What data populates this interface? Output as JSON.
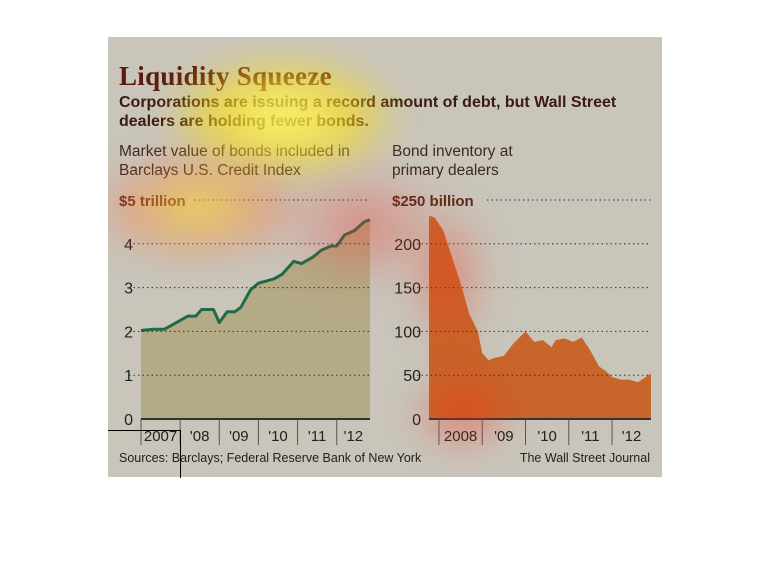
{
  "title": "Liquidity Squeeze",
  "subtitle": "Corporations are issuing a record amount of debt, but Wall Street dealers are holding fewer bonds.",
  "source": "Sources: Barclays; Federal Reserve Bank of New York",
  "credit": "The Wall Street Journal",
  "colors": {
    "line": "#1f6b45",
    "left_fill": "#b5aa86",
    "right_fill": "#c8652a",
    "background": "#c9c5bb"
  },
  "chart_data": [
    {
      "type": "area",
      "title": "Market value of bonds included in Barclays U.S. Credit Index",
      "ylabel": "$5 trillion",
      "ylim": [
        0,
        5
      ],
      "yticks": [
        "0",
        "1",
        "2",
        "3",
        "4",
        "$5 trillion"
      ],
      "xlim": [
        2007.0,
        2012.85
      ],
      "xticks": [
        "2007",
        "'08",
        "'09",
        "'10",
        "'11",
        "'12"
      ],
      "x": [
        2007.0,
        2007.3,
        2007.6,
        2007.9,
        2008.2,
        2008.4,
        2008.55,
        2008.85,
        2009.0,
        2009.2,
        2009.4,
        2009.55,
        2009.8,
        2010.0,
        2010.2,
        2010.4,
        2010.6,
        2010.9,
        2011.1,
        2011.4,
        2011.6,
        2011.85,
        2012.0,
        2012.2,
        2012.45,
        2012.7,
        2012.85
      ],
      "values": [
        2.02,
        2.05,
        2.05,
        2.2,
        2.35,
        2.35,
        2.5,
        2.5,
        2.2,
        2.45,
        2.45,
        2.55,
        2.95,
        3.1,
        3.15,
        3.2,
        3.3,
        3.6,
        3.55,
        3.7,
        3.85,
        3.95,
        3.95,
        4.2,
        4.3,
        4.5,
        4.55
      ]
    },
    {
      "type": "area",
      "title": "Bond inventory at primary dealers",
      "ylabel": "$250 billion",
      "ylim": [
        0,
        250
      ],
      "yticks": [
        "0",
        "50",
        "100",
        "150",
        "200",
        "$250 billion"
      ],
      "xlim": [
        2007.77,
        2012.9
      ],
      "xticks": [
        "2008",
        "'09",
        "'10",
        "'11",
        "'12"
      ],
      "x": [
        2007.77,
        2007.9,
        2008.1,
        2008.3,
        2008.5,
        2008.7,
        2008.9,
        2009.0,
        2009.15,
        2009.3,
        2009.5,
        2009.7,
        2009.9,
        2010.0,
        2010.2,
        2010.4,
        2010.6,
        2010.7,
        2010.9,
        2011.1,
        2011.3,
        2011.5,
        2011.7,
        2011.85,
        2012.0,
        2012.2,
        2012.4,
        2012.6,
        2012.9
      ],
      "values": [
        232,
        230,
        215,
        185,
        155,
        120,
        100,
        75,
        67,
        70,
        72,
        85,
        95,
        100,
        88,
        90,
        82,
        90,
        92,
        88,
        93,
        78,
        60,
        55,
        48,
        45,
        45,
        42,
        52
      ]
    }
  ]
}
